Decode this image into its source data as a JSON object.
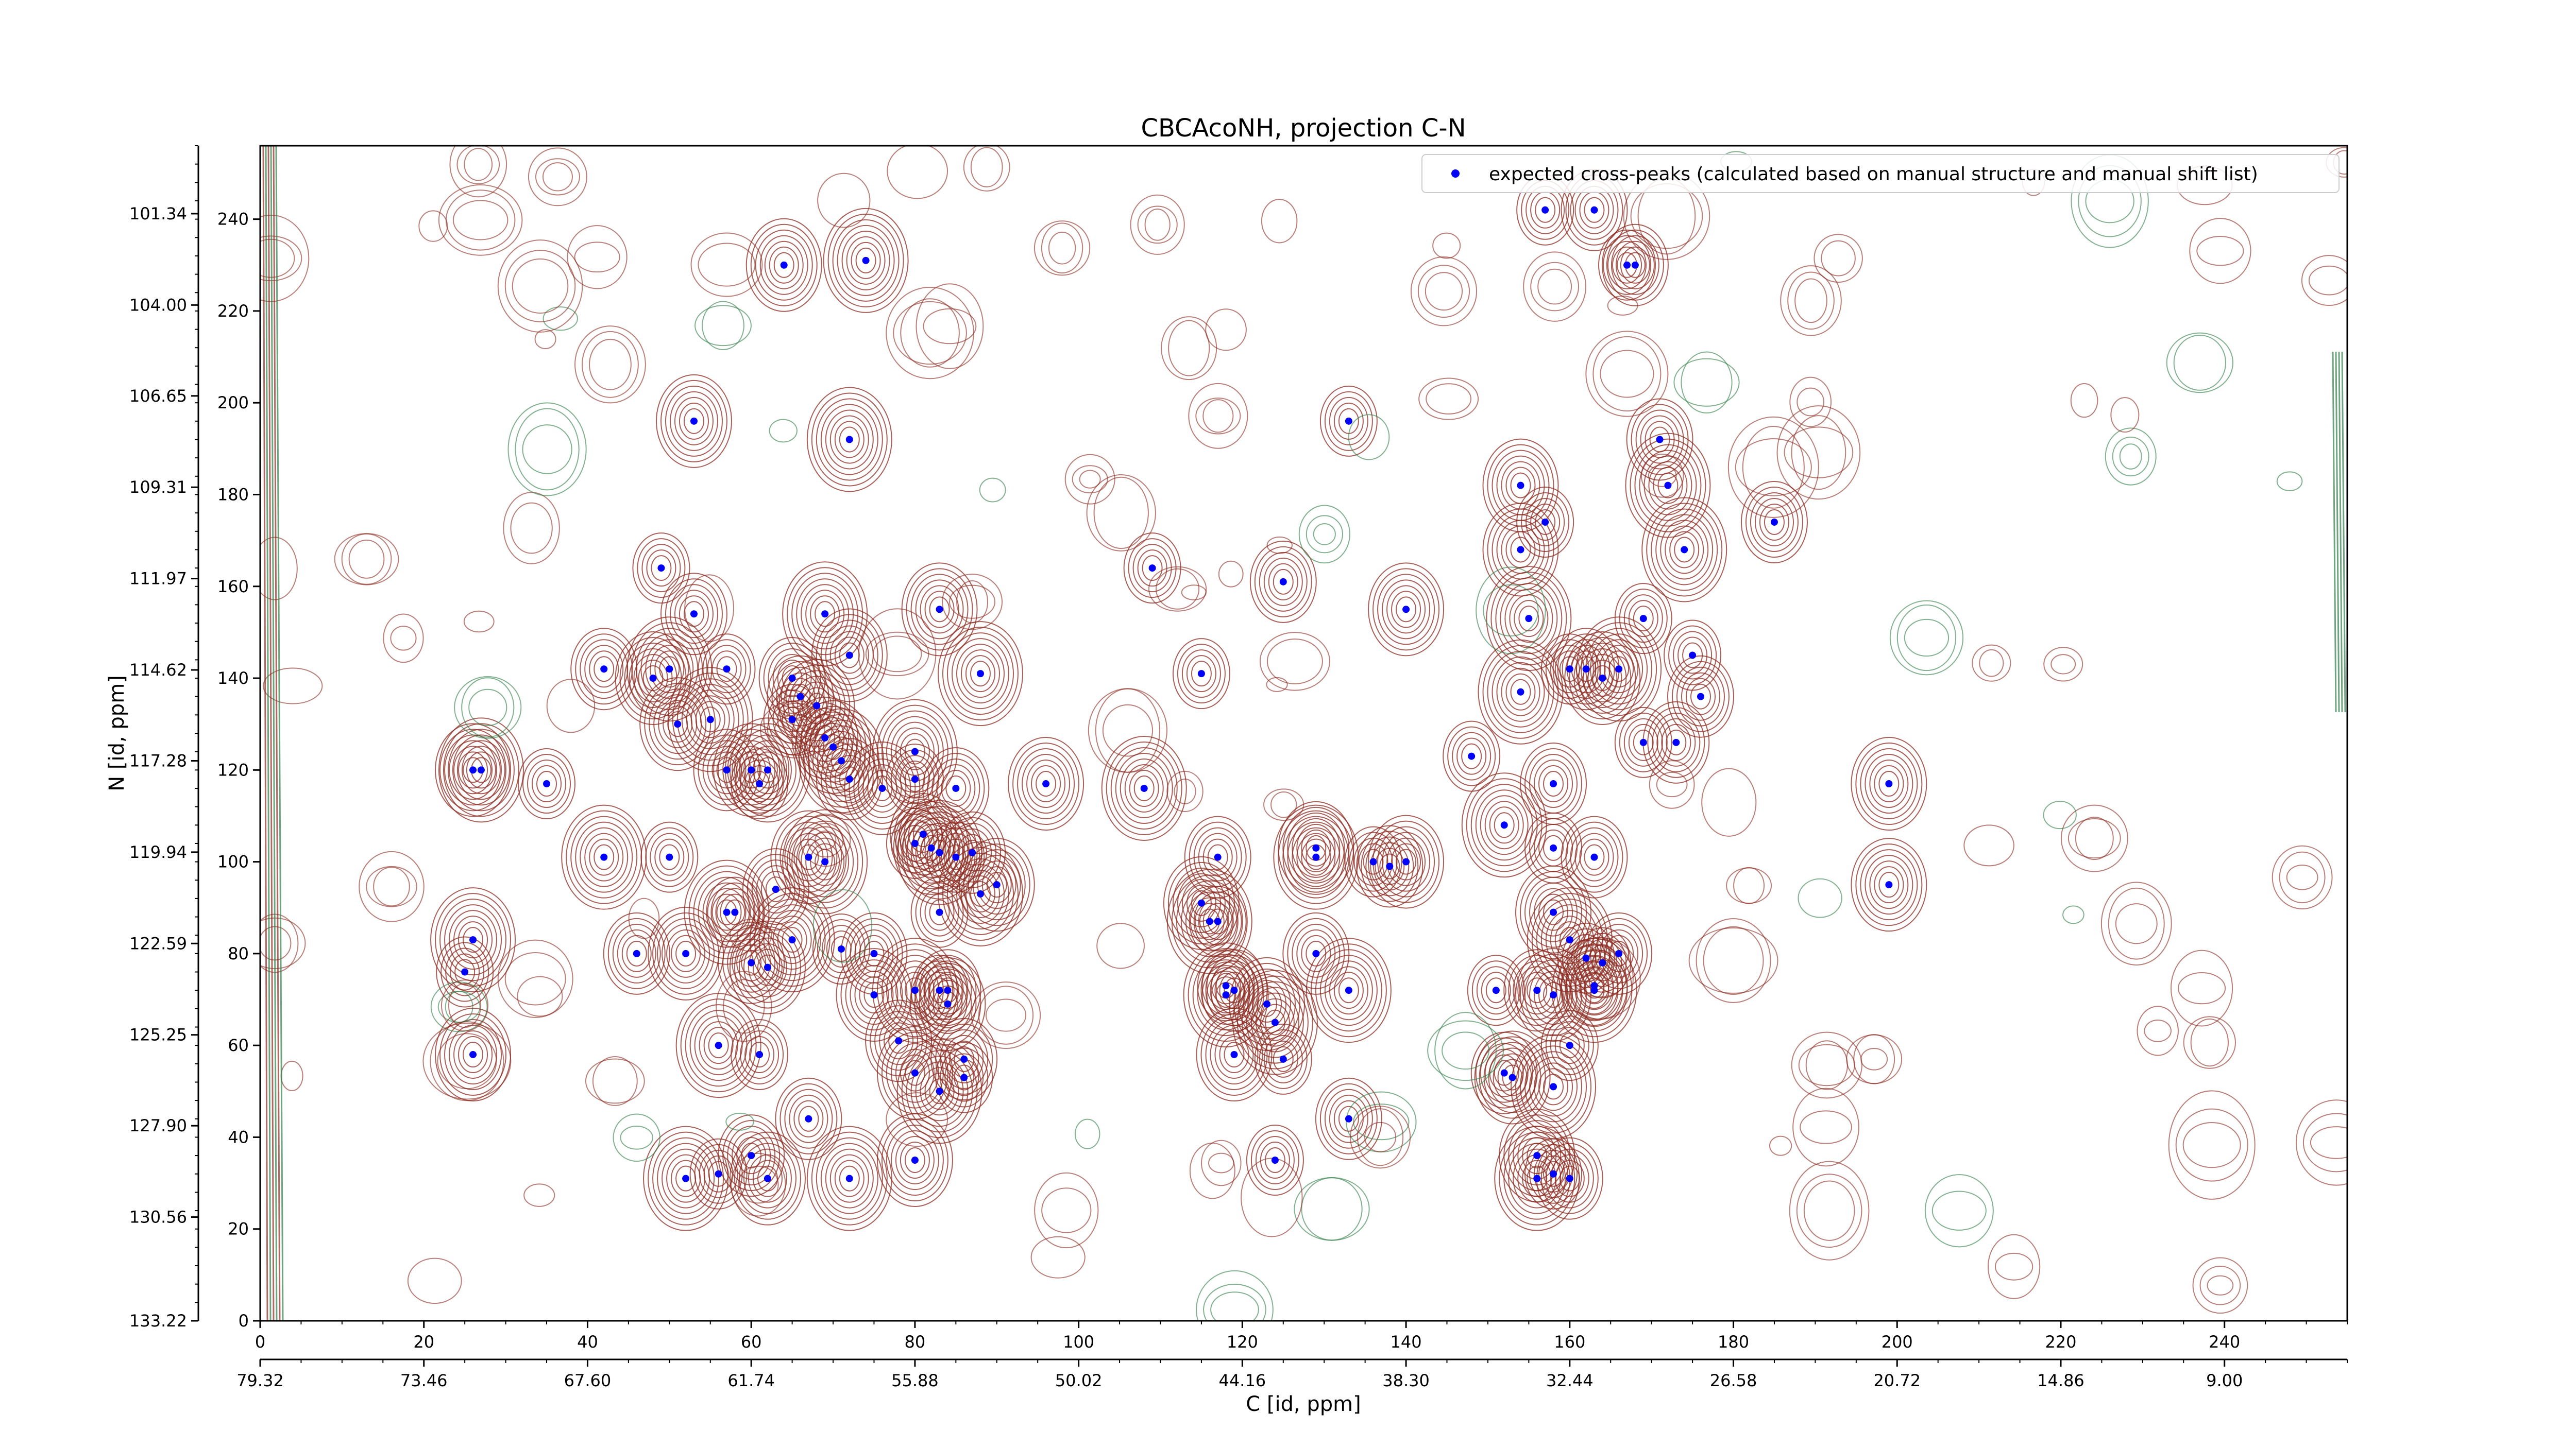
{
  "chart_data": {
    "type": "scatter",
    "title": "CBCAcoNH, projection C-N",
    "xlabel": "C [id, ppm]",
    "ylabel": "N [id, ppm]",
    "xlim": [
      0,
      255
    ],
    "ylim": [
      0,
      256
    ],
    "x_ticks": [
      0,
      20,
      40,
      60,
      80,
      100,
      120,
      140,
      160,
      180,
      200,
      220,
      240
    ],
    "y_ticks": [
      0,
      20,
      40,
      60,
      80,
      100,
      120,
      140,
      160,
      180,
      200,
      220,
      240
    ],
    "x_ppm_ticks": [
      "79.32",
      "73.46",
      "67.60",
      "61.74",
      "55.88",
      "50.02",
      "44.16",
      "38.30",
      "32.44",
      "26.58",
      "20.72",
      "14.86",
      "9.00"
    ],
    "x_ppm_positions": [
      0,
      20,
      40,
      60,
      80,
      100,
      120,
      140,
      160,
      180,
      200,
      220,
      240
    ],
    "y_ppm_ticks": [
      "101.34",
      "104.00",
      "106.65",
      "109.31",
      "111.97",
      "114.62",
      "117.28",
      "119.94",
      "122.59",
      "125.25",
      "127.90",
      "130.56",
      "133.22"
    ],
    "y_ppm_positions": [
      241.2,
      221.3,
      201.5,
      181.6,
      161.7,
      141.8,
      122.0,
      102.1,
      82.2,
      62.3,
      42.5,
      22.6,
      0
    ],
    "legend": {
      "label": "expected cross-peaks (calculated based on manual structure and manual shift list)",
      "placement": "top-right",
      "marker_color": "#0000ff"
    },
    "contour_colors": {
      "positive": "#8b2a1f",
      "negative": "#2e7d46"
    },
    "series": [
      {
        "name": "expected cross-peaks (calculated based on manual structure and manual shift list)",
        "points": [
          [
            157,
            242
          ],
          [
            163,
            242
          ],
          [
            64,
            230
          ],
          [
            74,
            231
          ],
          [
            167,
            230
          ],
          [
            168,
            230
          ],
          [
            53,
            196
          ],
          [
            72,
            192
          ],
          [
            133,
            196
          ],
          [
            171,
            192
          ],
          [
            154,
            182
          ],
          [
            172,
            182
          ],
          [
            157,
            174
          ],
          [
            185,
            174
          ],
          [
            154,
            168
          ],
          [
            174,
            168
          ],
          [
            49,
            164
          ],
          [
            53,
            154
          ],
          [
            83,
            155
          ],
          [
            69,
            154
          ],
          [
            109,
            164
          ],
          [
            125,
            161
          ],
          [
            140,
            155
          ],
          [
            155,
            153
          ],
          [
            169,
            153
          ],
          [
            42,
            142
          ],
          [
            48,
            140
          ],
          [
            50,
            142
          ],
          [
            57,
            142
          ],
          [
            65,
            140
          ],
          [
            72,
            145
          ],
          [
            88,
            141
          ],
          [
            115,
            141
          ],
          [
            66,
            136
          ],
          [
            68,
            134
          ],
          [
            154,
            137
          ],
          [
            160,
            142
          ],
          [
            162,
            142
          ],
          [
            164,
            140
          ],
          [
            166,
            142
          ],
          [
            175,
            145
          ],
          [
            176,
            136
          ],
          [
            51,
            130
          ],
          [
            55,
            131
          ],
          [
            65,
            131
          ],
          [
            69,
            127
          ],
          [
            70,
            125
          ],
          [
            71,
            122
          ],
          [
            169,
            126
          ],
          [
            173,
            126
          ],
          [
            26,
            120
          ],
          [
            27,
            120
          ],
          [
            35,
            117
          ],
          [
            57,
            120
          ],
          [
            60,
            120
          ],
          [
            62,
            120
          ],
          [
            61,
            117
          ],
          [
            72,
            118
          ],
          [
            76,
            116
          ],
          [
            80,
            124
          ],
          [
            80,
            118
          ],
          [
            85,
            116
          ],
          [
            96,
            117
          ],
          [
            108,
            116
          ],
          [
            148,
            123
          ],
          [
            158,
            117
          ],
          [
            199,
            117
          ],
          [
            42,
            101
          ],
          [
            50,
            101
          ],
          [
            63,
            94
          ],
          [
            67,
            101
          ],
          [
            69,
            100
          ],
          [
            80,
            104
          ],
          [
            81,
            106
          ],
          [
            82,
            103
          ],
          [
            83,
            102
          ],
          [
            85,
            101
          ],
          [
            87,
            102
          ],
          [
            90,
            95
          ],
          [
            88,
            93
          ],
          [
            83,
            89
          ],
          [
            117,
            101
          ],
          [
            129,
            103
          ],
          [
            129,
            101
          ],
          [
            136,
            100
          ],
          [
            138,
            99
          ],
          [
            140,
            100
          ],
          [
            152,
            108
          ],
          [
            158,
            103
          ],
          [
            163,
            101
          ],
          [
            199,
            95
          ],
          [
            26,
            83
          ],
          [
            25,
            76
          ],
          [
            46,
            80
          ],
          [
            52,
            80
          ],
          [
            57,
            89
          ],
          [
            58,
            89
          ],
          [
            60,
            78
          ],
          [
            62,
            77
          ],
          [
            65,
            83
          ],
          [
            71,
            81
          ],
          [
            75,
            80
          ],
          [
            115,
            91
          ],
          [
            116,
            87
          ],
          [
            117,
            87
          ],
          [
            129,
            80
          ],
          [
            158,
            89
          ],
          [
            160,
            83
          ],
          [
            162,
            79
          ],
          [
            166,
            80
          ],
          [
            75,
            71
          ],
          [
            80,
            72
          ],
          [
            83,
            72
          ],
          [
            84,
            72
          ],
          [
            84,
            69
          ],
          [
            118,
            71
          ],
          [
            118,
            73
          ],
          [
            119,
            72
          ],
          [
            123,
            69
          ],
          [
            133,
            72
          ],
          [
            151,
            72
          ],
          [
            156,
            72
          ],
          [
            158,
            71
          ],
          [
            163,
            72
          ],
          [
            164,
            78
          ],
          [
            163,
            73
          ],
          [
            26,
            58
          ],
          [
            56,
            60
          ],
          [
            61,
            58
          ],
          [
            78,
            61
          ],
          [
            80,
            54
          ],
          [
            83,
            50
          ],
          [
            86,
            53
          ],
          [
            86,
            57
          ],
          [
            119,
            58
          ],
          [
            124,
            65
          ],
          [
            125,
            57
          ],
          [
            152,
            54
          ],
          [
            153,
            53
          ],
          [
            158,
            51
          ],
          [
            160,
            60
          ],
          [
            67,
            44
          ],
          [
            80,
            35
          ],
          [
            52,
            31
          ],
          [
            56,
            32
          ],
          [
            60,
            36
          ],
          [
            62,
            31
          ],
          [
            72,
            31
          ],
          [
            124,
            35
          ],
          [
            133,
            44
          ],
          [
            156,
            36
          ],
          [
            156,
            31
          ],
          [
            158,
            32
          ],
          [
            160,
            31
          ]
        ]
      }
    ]
  }
}
